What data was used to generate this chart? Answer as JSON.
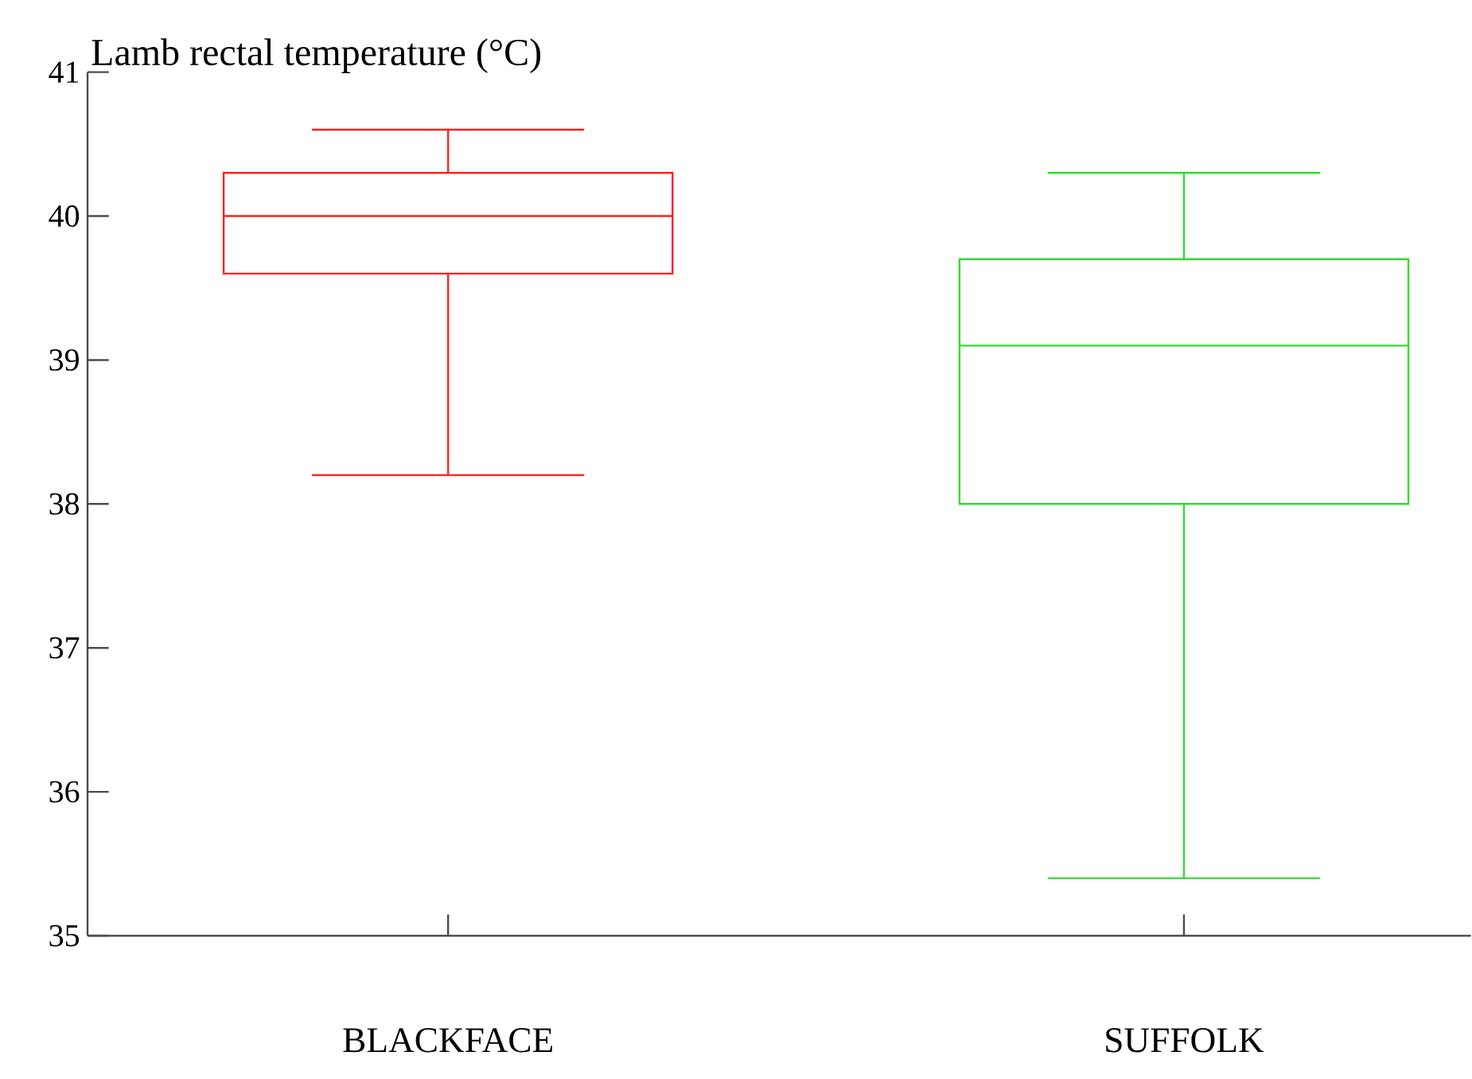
{
  "chart_data": {
    "type": "box",
    "ylabel": "Lamb rectal temperature (°C)",
    "categories": [
      "BLACKFACE",
      "SUFFOLK"
    ],
    "colors": [
      "#ff2020",
      "#33dd33"
    ],
    "boxes": [
      {
        "low": 38.2,
        "q1": 39.6,
        "median": 40.0,
        "q3": 40.3,
        "high": 40.6
      },
      {
        "low": 35.4,
        "q1": 38.0,
        "median": 39.1,
        "q3": 39.7,
        "high": 40.3
      }
    ],
    "ylim": [
      35,
      41
    ],
    "yticks": [
      35,
      36,
      37,
      38,
      39,
      40,
      41
    ]
  }
}
